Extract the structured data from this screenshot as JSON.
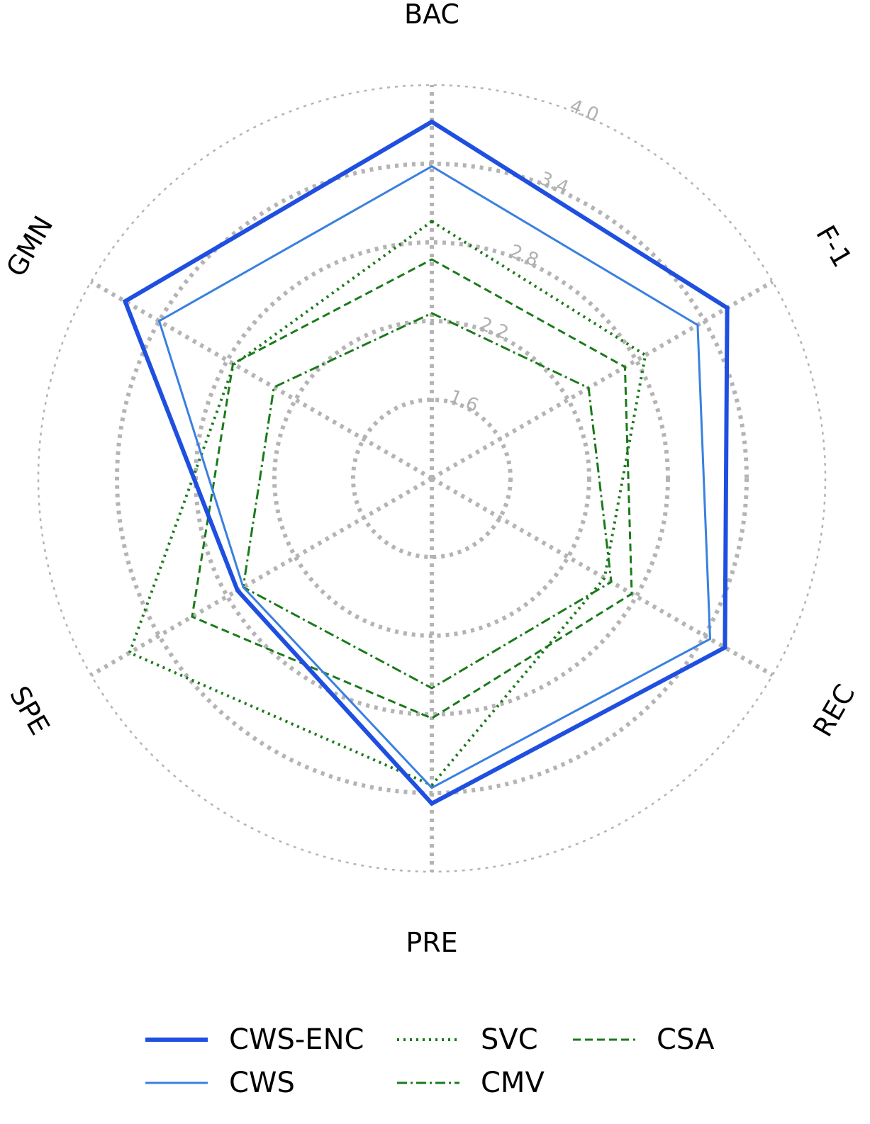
{
  "chart_data": {
    "type": "radar",
    "axes": [
      "BAC",
      "F-1",
      "REC",
      "PRE",
      "SPE",
      "GMN"
    ],
    "radial_ticks": [
      "1.6",
      "2.2",
      "2.8",
      "3.4",
      "4.0"
    ],
    "radial_range": [
      1.0,
      4.0
    ],
    "grid": true,
    "legend_position": "bottom",
    "series": [
      {
        "name": "CWS-ENC",
        "color": "#1f4fe0",
        "style": "solid-thick",
        "values": [
          3.72,
          3.6,
          3.58,
          3.48,
          2.71,
          3.7
        ]
      },
      {
        "name": "CWS",
        "color": "#3a80e0",
        "style": "solid-thin",
        "values": [
          3.38,
          3.34,
          3.45,
          3.36,
          2.66,
          3.4
        ]
      },
      {
        "name": "SVC",
        "color": "#1a7a1a",
        "style": "dotted",
        "values": [
          2.96,
          2.88,
          2.52,
          3.34,
          3.66,
          2.74
        ]
      },
      {
        "name": "CMV",
        "color": "#1a7a1a",
        "style": "dashdot",
        "values": [
          2.26,
          2.38,
          2.58,
          2.6,
          2.66,
          2.39
        ]
      },
      {
        "name": "CSA",
        "color": "#1a7a1a",
        "style": "dashed",
        "values": [
          2.67,
          2.7,
          2.76,
          2.83,
          3.11,
          2.75
        ]
      }
    ]
  }
}
